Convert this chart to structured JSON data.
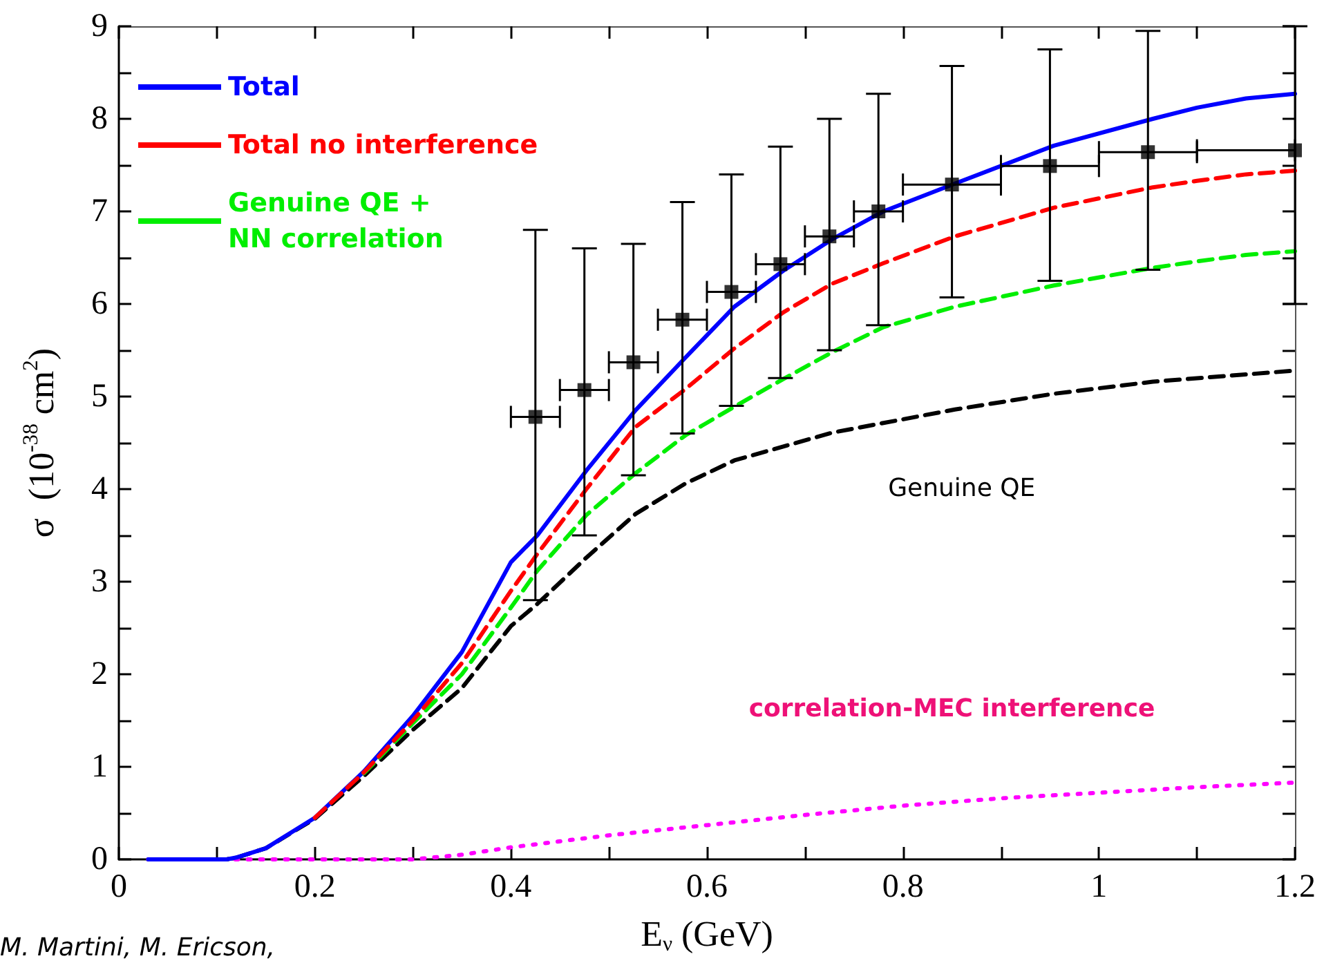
{
  "chart_data": {
    "type": "line",
    "xlabel": "E$_{ν}$ (GeV)",
    "ylabel": "σ  (10$^{-38}$ cm$^{2}$)",
    "xlim": [
      0,
      1.2
    ],
    "ylim": [
      0,
      9
    ],
    "xticks": [
      0,
      {
        "value": 0.1,
        "label": null
      },
      0.2,
      {
        "value": 0.3,
        "label": null
      },
      0.4,
      {
        "value": 0.5,
        "label": null
      },
      0.6,
      {
        "value": 0.7,
        "label": null
      },
      0.8,
      {
        "value": 0.9,
        "label": null
      },
      1,
      {
        "value": 1.1,
        "label": null
      },
      1.2
    ],
    "yticks": [
      0,
      {
        "value": 0.5,
        "label": null
      },
      1,
      {
        "value": 1.5,
        "label": null
      },
      2,
      {
        "value": 2.5,
        "label": null
      },
      3,
      {
        "value": 3.5,
        "label": null
      },
      4,
      {
        "value": 4.5,
        "label": null
      },
      5,
      {
        "value": 5.5,
        "label": null
      },
      6,
      {
        "value": 6.5,
        "label": null
      },
      7,
      {
        "value": 7.5,
        "label": null
      },
      8,
      {
        "value": 8.5,
        "label": null
      },
      9
    ],
    "grid": false,
    "legend": "top left",
    "marker": "none",
    "annotations": [
      "M. Martini, M. Ericson,"
    ],
    "series": [
      {
        "name": "Total",
        "color": "#0000ff",
        "line_style": "solid",
        "x": [
          0.03,
          0.11,
          0.12,
          0.15,
          0.2,
          0.25,
          0.3,
          0.35,
          0.4,
          0.427,
          0.477,
          0.527,
          0.578,
          0.628,
          0.678,
          0.728,
          0.78,
          0.853,
          0.954,
          1.055,
          1.1,
          1.15,
          1.2
        ],
        "values": [
          0,
          0,
          0.02,
          0.12,
          0.45,
          0.95,
          1.55,
          2.24,
          3.21,
          3.5,
          4.2,
          4.85,
          5.42,
          5.97,
          6.36,
          6.7,
          7.0,
          7.3,
          7.71,
          8.0,
          8.12,
          8.22,
          8.27
        ]
      },
      {
        "name": "Total no interference",
        "color": "#ff0000",
        "line_style": "dashed",
        "x": [
          0.2,
          0.25,
          0.3,
          0.35,
          0.4,
          0.427,
          0.477,
          0.527,
          0.578,
          0.628,
          0.678,
          0.728,
          0.78,
          0.853,
          0.954,
          1.055,
          1.1,
          1.15,
          1.2
        ],
        "values": [
          0.45,
          0.94,
          1.5,
          2.12,
          2.9,
          3.3,
          4.0,
          4.67,
          5.08,
          5.52,
          5.91,
          6.22,
          6.44,
          6.73,
          7.04,
          7.26,
          7.33,
          7.4,
          7.44
        ]
      },
      {
        "name": "Genuine QE +\nNN correlation",
        "color": "#00ee00",
        "line_style": "dashed",
        "x": [
          0.25,
          0.3,
          0.35,
          0.4,
          0.427,
          0.477,
          0.527,
          0.578,
          0.628,
          0.678,
          0.728,
          0.78,
          0.853,
          0.954,
          1.055,
          1.1,
          1.15,
          1.2
        ],
        "values": [
          0.93,
          1.47,
          2.0,
          2.72,
          3.12,
          3.72,
          4.17,
          4.58,
          4.89,
          5.19,
          5.48,
          5.75,
          5.97,
          6.2,
          6.39,
          6.46,
          6.53,
          6.57
        ]
      },
      {
        "name": "Genuine QE",
        "color": "#000000",
        "line_style": "dashed",
        "x": [
          0.03,
          0.11,
          0.12,
          0.15,
          0.2,
          0.25,
          0.3,
          0.35,
          0.4,
          0.427,
          0.477,
          0.527,
          0.578,
          0.628,
          0.728,
          0.853,
          0.954,
          1.055,
          1.2
        ],
        "values": [
          0,
          0,
          0.02,
          0.12,
          0.44,
          0.9,
          1.4,
          1.85,
          2.52,
          2.76,
          3.26,
          3.73,
          4.06,
          4.31,
          4.61,
          4.86,
          5.03,
          5.16,
          5.28
        ]
      },
      {
        "name": "correlation-MEC interference",
        "color": "#ff00ff",
        "line_style": "dotted",
        "x": [
          0.03,
          0.3,
          0.35,
          0.4,
          0.5,
          0.6,
          0.7,
          0.8,
          0.9,
          1.0,
          1.1,
          1.2
        ],
        "values": [
          0,
          0,
          0.05,
          0.13,
          0.26,
          0.37,
          0.48,
          0.58,
          0.66,
          0.72,
          0.78,
          0.83
        ]
      },
      {
        "type": "scatter",
        "color": "#000000",
        "marker": "square",
        "x": [
          0.425,
          0.475,
          0.525,
          0.575,
          0.625,
          0.675,
          0.725,
          0.775,
          0.85,
          0.95,
          1.05,
          1.2
        ],
        "values": [
          4.78,
          5.07,
          5.37,
          5.83,
          6.13,
          6.43,
          6.73,
          7.0,
          7.29,
          7.49,
          7.64,
          7.66
        ],
        "errors": [
          [
            2.8,
            6.8
          ],
          [
            3.5,
            6.6
          ],
          [
            4.15,
            6.65
          ],
          [
            4.6,
            7.1
          ],
          [
            4.9,
            7.4
          ],
          [
            5.2,
            7.7
          ],
          [
            5.5,
            8.0
          ],
          [
            5.77,
            8.27
          ],
          [
            6.07,
            8.57
          ],
          [
            6.25,
            8.75
          ],
          [
            6.37,
            8.95
          ],
          [
            6.0,
            9.0
          ]
        ],
        "xerrors": [
          [
            0.4,
            0.45
          ],
          [
            0.45,
            0.5
          ],
          [
            0.5,
            0.55
          ],
          [
            0.55,
            0.6
          ],
          [
            0.6,
            0.65
          ],
          [
            0.65,
            0.7
          ],
          [
            0.7,
            0.75
          ],
          [
            0.75,
            0.8
          ],
          [
            0.8,
            0.9
          ],
          [
            0.9,
            1.0
          ],
          [
            1.0,
            1.1
          ],
          [
            1.1,
            1.2
          ]
        ]
      }
    ]
  }
}
